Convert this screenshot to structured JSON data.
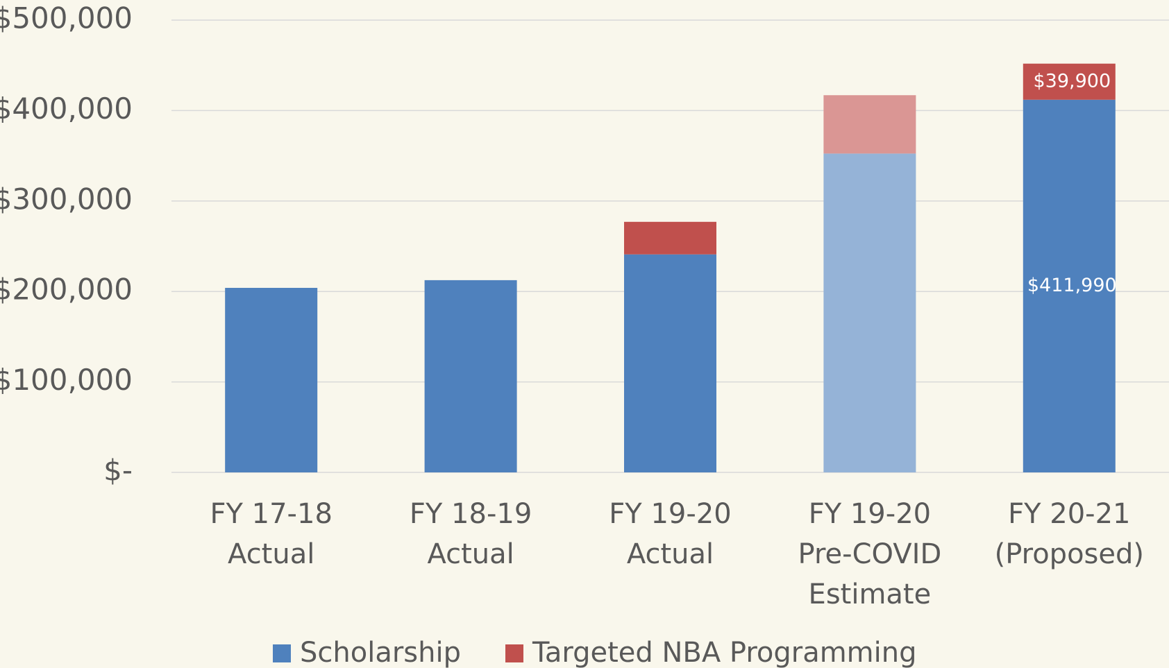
{
  "chart_data": {
    "type": "stacked_bar",
    "categories": [
      [
        "FY 17-18",
        "Actual"
      ],
      [
        "FY 18-19",
        "Actual"
      ],
      [
        "FY 19-20",
        "Actual"
      ],
      [
        "FY 19-20",
        "Pre-COVID",
        "Estimate"
      ],
      [
        "FY 20-21",
        "(Proposed)"
      ]
    ],
    "series": [
      {
        "name": "Scholarship",
        "color": "#4f81bd",
        "colors": [
          "#4f81bd",
          "#4f81bd",
          "#4f81bd",
          "#95b3d7",
          "#4f81bd"
        ],
        "values": [
          204000,
          212500,
          241000,
          352500,
          411990
        ],
        "value_labels": [
          null,
          null,
          null,
          null,
          "$411,990"
        ]
      },
      {
        "name": "Targeted NBA Programming",
        "color": "#c0504d",
        "colors": [
          "#c0504d",
          "#c0504d",
          "#c0504d",
          "#da9694",
          "#c0504d"
        ],
        "values": [
          null,
          null,
          36000,
          64500,
          39900
        ],
        "value_labels": [
          null,
          null,
          null,
          null,
          "$39,900"
        ]
      }
    ],
    "ylim": [
      0,
      500000
    ],
    "yticks": [
      {
        "value": 0,
        "label": "$-"
      },
      {
        "value": 100000,
        "label": "$100,000"
      },
      {
        "value": 200000,
        "label": "$200,000"
      },
      {
        "value": 300000,
        "label": "$300,000"
      },
      {
        "value": 400000,
        "label": "$400,000"
      },
      {
        "value": 500000,
        "label": "$500,000"
      }
    ],
    "grid": true,
    "legend": "bottom"
  }
}
